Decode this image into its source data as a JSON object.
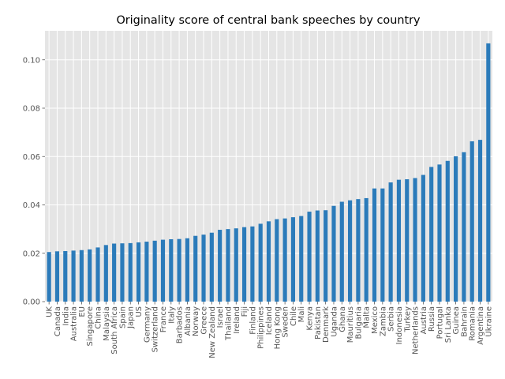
{
  "chart_data": {
    "type": "bar",
    "title": "Originality score of central bank speeches by country",
    "xlabel": "",
    "ylabel": "",
    "ylim": [
      0,
      0.112
    ],
    "yticks": [
      "0.00",
      "0.02",
      "0.04",
      "0.06",
      "0.08",
      "0.10"
    ],
    "ytick_values": [
      0,
      0.02,
      0.04,
      0.06,
      0.08,
      0.1
    ],
    "grid": true,
    "bar_color": "#2b7bba",
    "background_color": "#e5e5e5",
    "categories": [
      "UK",
      "Canada",
      "India",
      "Australia",
      "EU",
      "Singapore",
      "China",
      "Malaysia",
      "South Africa",
      "Spain",
      "Japan",
      "US",
      "Germany",
      "Switzerland",
      "France",
      "Italy",
      "Barbados",
      "Albania",
      "Norway",
      "Greece",
      "New Zealand",
      "Israel",
      "Thailand",
      "Ireland",
      "Fiji",
      "Finland",
      "Philippines",
      "Iceland",
      "Hong Kong",
      "Sweden",
      "Chile",
      "Mali",
      "Kenya",
      "Pakistan",
      "Denmark",
      "Uganda",
      "Ghana",
      "Mauritius",
      "Bulgaria",
      "Malta",
      "Mexico",
      "Zambia",
      "Serbia",
      "Indonesia",
      "Turkey",
      "Netherlands",
      "Austria",
      "Russia",
      "Portugal",
      "Sri Lanka",
      "Guinea",
      "Bahrain",
      "Romania",
      "Argentina",
      "Ukraine"
    ],
    "values": [
      0.0205,
      0.0208,
      0.0209,
      0.0211,
      0.0213,
      0.0216,
      0.0224,
      0.0234,
      0.024,
      0.0241,
      0.0242,
      0.0245,
      0.0248,
      0.0252,
      0.0256,
      0.0258,
      0.0259,
      0.0262,
      0.0272,
      0.0277,
      0.0285,
      0.0297,
      0.03,
      0.0303,
      0.0308,
      0.0311,
      0.0322,
      0.0332,
      0.0341,
      0.0344,
      0.0349,
      0.0354,
      0.0372,
      0.0377,
      0.0378,
      0.0396,
      0.0413,
      0.0419,
      0.0424,
      0.0428,
      0.0468,
      0.0468,
      0.0493,
      0.0504,
      0.0506,
      0.0511,
      0.0524,
      0.0557,
      0.0567,
      0.0582,
      0.0601,
      0.0618,
      0.0663,
      0.0669,
      0.1068
    ]
  }
}
